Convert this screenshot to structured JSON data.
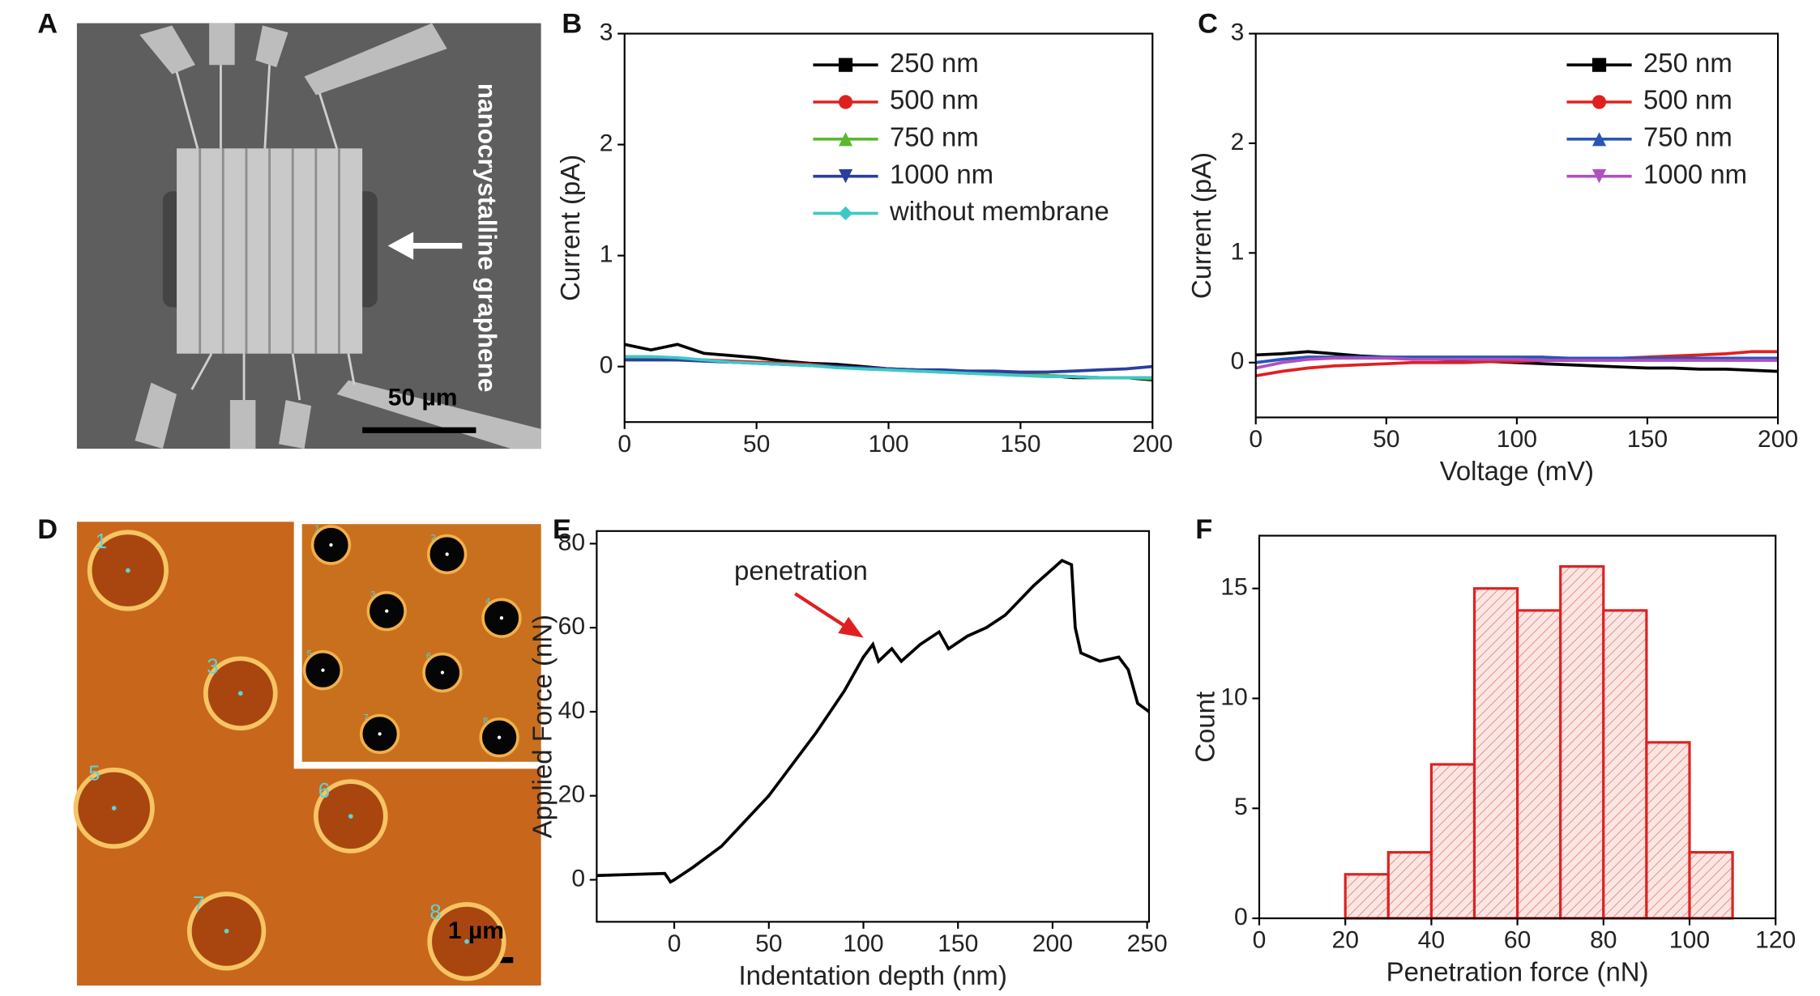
{
  "images": [
    {
      "label": "A",
      "texts": [
        "nanocrystalline graphene",
        "50 µm"
      ]
    },
    {
      "label": "D",
      "scale": "1 µm",
      "hole_labels": [
        "1",
        "3",
        "5",
        "6",
        "7",
        "8"
      ],
      "inset_labels": [
        "1",
        "2",
        "3",
        "4",
        "5",
        "6",
        "7",
        "8"
      ]
    }
  ],
  "chart_data": [
    {
      "type": "line",
      "label": "B",
      "y_label": "Current (pA)",
      "x": [
        0,
        10,
        20,
        30,
        40,
        50,
        60,
        70,
        80,
        90,
        100,
        110,
        120,
        130,
        140,
        150,
        160,
        170,
        180,
        190,
        200
      ],
      "xlim": [
        0,
        200
      ],
      "xticks": [
        0,
        50,
        100,
        150,
        200
      ],
      "ylim": [
        -0.5,
        3
      ],
      "yticks": [
        0,
        1,
        2,
        3
      ],
      "legend": "upper center",
      "series": [
        {
          "name": "250 nm",
          "color": "#000000",
          "marker": "square",
          "values": [
            0.2,
            0.15,
            0.2,
            0.12,
            0.1,
            0.08,
            0.05,
            0.03,
            0.02,
            0.0,
            -0.02,
            -0.03,
            -0.05,
            -0.05,
            -0.06,
            -0.08,
            -0.08,
            -0.1,
            -0.1,
            -0.1,
            -0.12
          ]
        },
        {
          "name": "500 nm",
          "color": "#e02020",
          "marker": "circle",
          "values": [
            0.08,
            0.08,
            0.07,
            0.06,
            0.05,
            0.04,
            0.03,
            0.02,
            0.0,
            -0.01,
            -0.02,
            -0.03,
            -0.04,
            -0.05,
            -0.06,
            -0.07,
            -0.08,
            -0.09,
            -0.1,
            -0.1,
            -0.1
          ]
        },
        {
          "name": "750 nm",
          "color": "#5cb82e",
          "marker": "triangle",
          "values": [
            0.07,
            0.07,
            0.06,
            0.05,
            0.04,
            0.03,
            0.02,
            0.01,
            0.0,
            -0.02,
            -0.03,
            -0.04,
            -0.05,
            -0.06,
            -0.07,
            -0.08,
            -0.08,
            -0.09,
            -0.1,
            -0.1,
            -0.11
          ]
        },
        {
          "name": "1000 nm",
          "color": "#2a3f9e",
          "marker": "down-triangle",
          "values": [
            0.06,
            0.06,
            0.06,
            0.05,
            0.04,
            0.03,
            0.02,
            0.01,
            0.0,
            -0.01,
            -0.02,
            -0.03,
            -0.03,
            -0.04,
            -0.04,
            -0.05,
            -0.05,
            -0.04,
            -0.03,
            -0.02,
            0.0
          ]
        },
        {
          "name": "without membrane",
          "color": "#3cc8c8",
          "marker": "diamond",
          "values": [
            0.09,
            0.09,
            0.08,
            0.06,
            0.04,
            0.03,
            0.02,
            0.01,
            -0.01,
            -0.02,
            -0.03,
            -0.04,
            -0.05,
            -0.06,
            -0.07,
            -0.08,
            -0.09,
            -0.09,
            -0.1,
            -0.1,
            -0.1
          ]
        }
      ]
    },
    {
      "type": "line",
      "label": "C",
      "y_label": "Current (pA)",
      "x_label": "Voltage (mV)",
      "x": [
        0,
        10,
        20,
        30,
        40,
        50,
        60,
        70,
        80,
        90,
        100,
        110,
        120,
        130,
        140,
        150,
        160,
        170,
        180,
        190,
        200
      ],
      "xlim": [
        0,
        200
      ],
      "xticks": [
        0,
        50,
        100,
        150,
        200
      ],
      "ylim": [
        -0.5,
        3
      ],
      "yticks": [
        0,
        1,
        2,
        3
      ],
      "legend": "upper right",
      "series": [
        {
          "name": "250 nm",
          "color": "#000000",
          "marker": "square",
          "values": [
            0.07,
            0.08,
            0.1,
            0.08,
            0.06,
            0.05,
            0.04,
            0.03,
            0.02,
            0.01,
            0.0,
            -0.01,
            -0.02,
            -0.03,
            -0.04,
            -0.05,
            -0.05,
            -0.06,
            -0.06,
            -0.07,
            -0.08
          ]
        },
        {
          "name": "500 nm",
          "color": "#e02020",
          "marker": "circle",
          "values": [
            -0.12,
            -0.08,
            -0.05,
            -0.03,
            -0.02,
            -0.01,
            0.0,
            0.0,
            0.0,
            0.01,
            0.01,
            0.02,
            0.02,
            0.03,
            0.04,
            0.05,
            0.06,
            0.07,
            0.08,
            0.1,
            0.1
          ]
        },
        {
          "name": "750 nm",
          "color": "#2a55b8",
          "marker": "triangle",
          "values": [
            0.0,
            0.03,
            0.05,
            0.05,
            0.05,
            0.05,
            0.05,
            0.05,
            0.05,
            0.05,
            0.05,
            0.05,
            0.04,
            0.04,
            0.04,
            0.04,
            0.04,
            0.04,
            0.04,
            0.04,
            0.04
          ]
        },
        {
          "name": "1000 nm",
          "color": "#b050c0",
          "marker": "down-triangle",
          "values": [
            -0.05,
            0.0,
            0.03,
            0.04,
            0.04,
            0.04,
            0.03,
            0.03,
            0.03,
            0.03,
            0.03,
            0.02,
            0.02,
            0.02,
            0.02,
            0.02,
            0.02,
            0.02,
            0.02,
            0.02,
            0.02
          ]
        }
      ]
    },
    {
      "type": "line",
      "label": "E",
      "y_label": "Applied Force (nN)",
      "x_label": "Indentation depth (nm)",
      "annotation": "penetration",
      "x": [
        -41,
        -5,
        -2,
        0,
        10,
        25,
        50,
        75,
        90,
        100,
        105,
        108,
        115,
        120,
        130,
        140,
        145,
        155,
        165,
        175,
        190,
        200,
        205,
        210,
        212,
        215,
        225,
        235,
        240,
        245,
        251
      ],
      "xlim": [
        -41,
        251
      ],
      "xticks": [
        0,
        50,
        100,
        150,
        200,
        250
      ],
      "ylim": [
        -10,
        83
      ],
      "yticks": [
        0,
        20,
        40,
        60,
        80
      ],
      "series": [
        {
          "color": "#000000",
          "values": [
            1,
            1.5,
            -0.5,
            0,
            3,
            8,
            20,
            35,
            45,
            53,
            56,
            52,
            55,
            52,
            56,
            59,
            55,
            58,
            60,
            63,
            70,
            74,
            76,
            75,
            60,
            54,
            52,
            53,
            50,
            42,
            40
          ]
        }
      ]
    },
    {
      "type": "histogram",
      "label": "F",
      "y_label": "Count",
      "x_label": "Penetration force (nN)",
      "bins": [
        20,
        30,
        40,
        50,
        60,
        70,
        80,
        90,
        100,
        110
      ],
      "values": [
        2,
        3,
        7,
        15,
        14,
        16,
        14,
        8,
        3
      ],
      "color": "#e02020",
      "xlim": [
        0,
        120
      ],
      "xticks": [
        0,
        20,
        40,
        60,
        80,
        100,
        120
      ],
      "ylim": [
        0,
        17.4
      ],
      "yticks": [
        0,
        5,
        10,
        15
      ]
    }
  ]
}
